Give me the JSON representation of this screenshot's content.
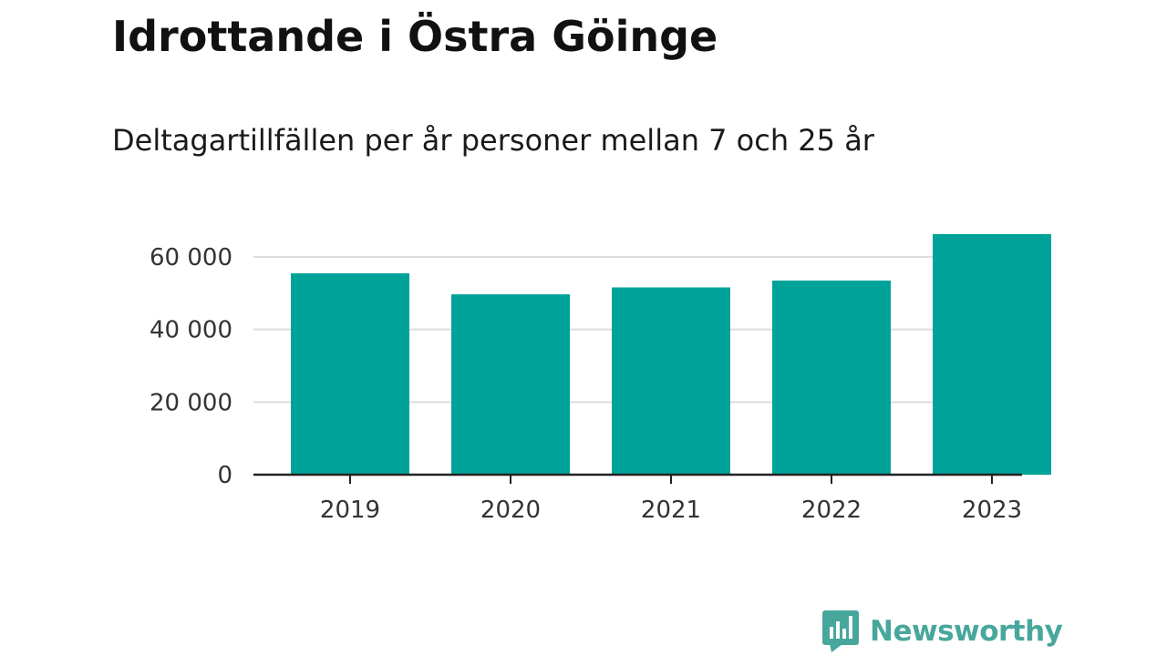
{
  "header": {
    "title": "Idrottande i Östra Göinge",
    "subtitle": "Deltagartillfällen per år personer mellan 7 och 25 år"
  },
  "chart_data": {
    "type": "bar",
    "title": "Idrottande i Östra Göinge",
    "subtitle": "Deltagartillfällen per år personer mellan 7 och 25 år",
    "categories": [
      "2019",
      "2020",
      "2021",
      "2022",
      "2023"
    ],
    "values": [
      55500,
      49700,
      51600,
      53500,
      66300
    ],
    "xlabel": "",
    "ylabel": "",
    "ylim": [
      0,
      60000
    ],
    "yticks": [
      0,
      20000,
      40000,
      60000
    ],
    "ytick_labels": [
      "0",
      "20 000",
      "40 000",
      "60 000"
    ],
    "grid": true,
    "legend": "none",
    "bar_color": "#00a39a"
  },
  "logo": {
    "text": "Newsworthy",
    "icon": "newsworthy-chart-icon",
    "color": "#48a79c"
  }
}
